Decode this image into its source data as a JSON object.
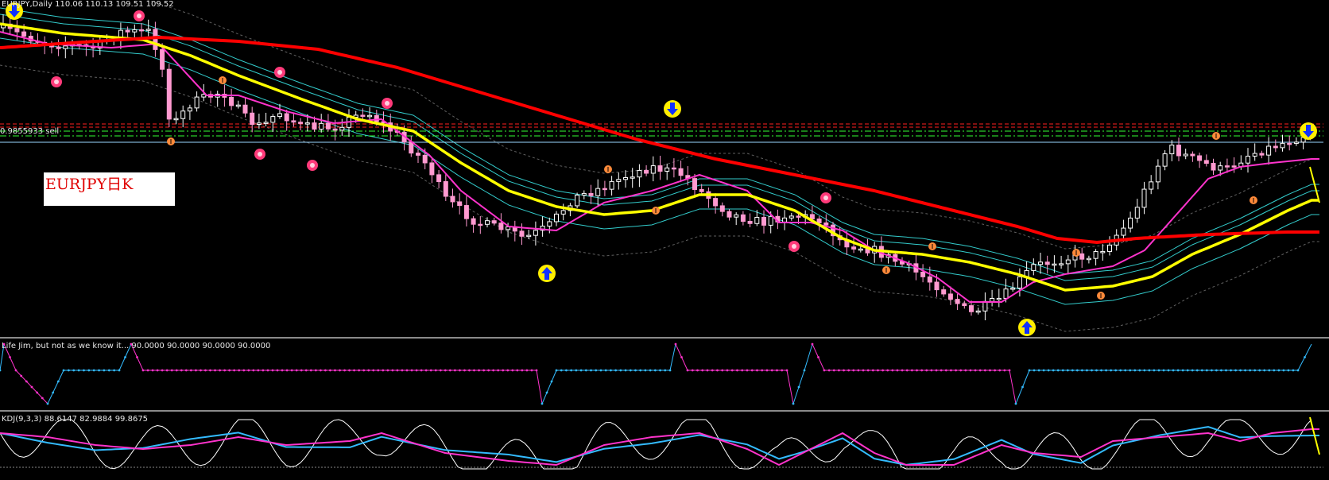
{
  "main_panel": {
    "header": "EURJPY,Daily  110.06 110.13 109.51 109.52",
    "level_tag": "0.9855933 sell",
    "pair_label": "EURJPY日K"
  },
  "indicator_1": {
    "header": "Life Jim, but not as we know it...  90.0000 90.0000 90.0000 90.0000"
  },
  "indicator_2": {
    "header": "KDJ(9,3,3) 88.6147 82.9884 99.8675"
  },
  "colors": {
    "background": "#000000",
    "ma_slow": "#ff0000",
    "ma_mid": "#ffff00",
    "ma_fast": "#ff33cc",
    "band": "#33cccc",
    "envelope": "#606060",
    "candle_up": "#ffffff",
    "candle_down": "#ff9ad0",
    "level_red": "#ff2020",
    "level_green": "#33ff33",
    "osc_up": "#33bbff",
    "osc_down": "#ff33cc",
    "kdj_j": "#ffffff",
    "kdj_k": "#33bbff",
    "kdj_d": "#ff33cc",
    "separator": "#8a8a8a",
    "signal_arrow": "#ffff00"
  },
  "icons": [
    "buy-arrow-icon",
    "sell-arrow-icon",
    "fractal-dot-icon",
    "bomb-icon"
  ]
}
